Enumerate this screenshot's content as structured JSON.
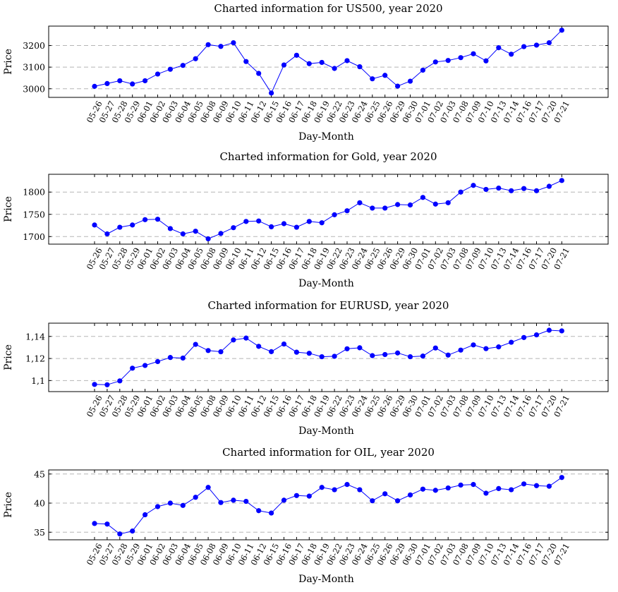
{
  "chart_data": [
    {
      "type": "line",
      "title": "Charted information for US500, year 2020",
      "xlabel": "Day-Month",
      "ylabel": "Price",
      "ylim": [
        2960,
        3290
      ],
      "yticks": [
        3000,
        3100,
        3200
      ],
      "ytick_labels": [
        "3000",
        "3100",
        "3200"
      ],
      "grid": "horizontal dashed",
      "line_color": "#0000ff",
      "categories": [
        "05-26",
        "05-27",
        "05-28",
        "05-29",
        "06-01",
        "06-02",
        "06-03",
        "06-04",
        "06-05",
        "06-08",
        "06-09",
        "06-10",
        "06-11",
        "06-12",
        "06-15",
        "06-16",
        "06-17",
        "06-18",
        "06-19",
        "06-22",
        "06-23",
        "06-24",
        "06-25",
        "06-26",
        "06-29",
        "06-30",
        "07-01",
        "07-02",
        "07-03",
        "07-08",
        "07-09",
        "07-10",
        "07-13",
        "07-14",
        "07-16",
        "07-17",
        "07-20",
        "07-21"
      ],
      "values": [
        3011,
        3024,
        3037,
        3022,
        3037,
        3068,
        3090,
        3108,
        3139,
        3204,
        3196,
        3213,
        3126,
        3071,
        2980,
        3110,
        3155,
        3116,
        3122,
        3094,
        3130,
        3102,
        3046,
        3062,
        3012,
        3035,
        3086,
        3124,
        3131,
        3144,
        3162,
        3129,
        3190,
        3160,
        3195,
        3202,
        3213,
        3271
      ]
    },
    {
      "type": "line",
      "title": "Charted information for Gold, year 2020",
      "xlabel": "Day-Month",
      "ylabel": "Price",
      "ylim": [
        1683,
        1840
      ],
      "yticks": [
        1700,
        1750,
        1800
      ],
      "ytick_labels": [
        "1700",
        "1750",
        "1800"
      ],
      "grid": "horizontal dashed",
      "line_color": "#0000ff",
      "categories": [
        "05-26",
        "05-27",
        "05-28",
        "05-29",
        "06-01",
        "06-02",
        "06-03",
        "06-04",
        "06-05",
        "06-08",
        "06-09",
        "06-10",
        "06-11",
        "06-12",
        "06-15",
        "06-16",
        "06-17",
        "06-18",
        "06-19",
        "06-22",
        "06-23",
        "06-24",
        "06-25",
        "06-26",
        "06-29",
        "06-30",
        "07-01",
        "07-02",
        "07-03",
        "07-08",
        "07-09",
        "07-10",
        "07-13",
        "07-14",
        "07-16",
        "07-17",
        "07-20",
        "07-21"
      ],
      "values": [
        1726,
        1706,
        1721,
        1726,
        1738,
        1739,
        1718,
        1706,
        1712,
        1695,
        1707,
        1720,
        1734,
        1735,
        1722,
        1729,
        1721,
        1734,
        1731,
        1749,
        1758,
        1776,
        1764,
        1764,
        1772,
        1771,
        1788,
        1773,
        1776,
        1800,
        1815,
        1806,
        1809,
        1803,
        1808,
        1803,
        1813,
        1826
      ]
    },
    {
      "type": "line",
      "title": "Charted information for EURUSD, year 2020",
      "xlabel": "Day-Month",
      "ylabel": "Price",
      "ylim": [
        1.09,
        1.152
      ],
      "yticks": [
        1.1,
        1.12,
        1.14
      ],
      "ytick_labels": [
        "1,1",
        "1,12",
        "1,14"
      ],
      "grid": "horizontal dashed",
      "line_color": "#0000ff",
      "categories": [
        "05-26",
        "05-27",
        "05-28",
        "05-29",
        "06-01",
        "06-02",
        "06-03",
        "06-04",
        "06-05",
        "06-08",
        "06-09",
        "06-10",
        "06-11",
        "06-12",
        "06-15",
        "06-16",
        "06-17",
        "06-18",
        "06-19",
        "06-22",
        "06-23",
        "06-24",
        "06-25",
        "06-26",
        "06-29",
        "06-30",
        "07-01",
        "07-02",
        "07-03",
        "07-08",
        "07-09",
        "07-10",
        "07-13",
        "07-14",
        "07-16",
        "07-17",
        "07-20",
        "07-21"
      ],
      "values": [
        1.0965,
        1.0962,
        1.0997,
        1.1112,
        1.1137,
        1.1172,
        1.1209,
        1.1204,
        1.1328,
        1.1272,
        1.1261,
        1.1368,
        1.1385,
        1.131,
        1.1262,
        1.1331,
        1.1257,
        1.1247,
        1.1216,
        1.122,
        1.1288,
        1.1297,
        1.1226,
        1.1236,
        1.125,
        1.1216,
        1.1222,
        1.1295,
        1.1231,
        1.1276,
        1.1323,
        1.1289,
        1.1305,
        1.1347,
        1.139,
        1.1414,
        1.1456,
        1.145
      ]
    },
    {
      "type": "line",
      "title": "Charted information for OIL, year 2020",
      "xlabel": "Day-Month",
      "ylabel": "Price",
      "ylim": [
        33.7,
        45.7
      ],
      "yticks": [
        35,
        40,
        45
      ],
      "ytick_labels": [
        "35",
        "40",
        "45"
      ],
      "grid": "horizontal dashed",
      "line_color": "#0000ff",
      "categories": [
        "05-26",
        "05-27",
        "05-28",
        "05-29",
        "06-01",
        "06-02",
        "06-03",
        "06-04",
        "06-05",
        "06-08",
        "06-09",
        "06-10",
        "06-11",
        "06-12",
        "06-15",
        "06-16",
        "06-17",
        "06-18",
        "06-19",
        "06-22",
        "06-23",
        "06-24",
        "06-25",
        "06-26",
        "06-29",
        "06-30",
        "07-01",
        "07-02",
        "07-03",
        "07-08",
        "07-09",
        "07-10",
        "07-13",
        "07-14",
        "07-16",
        "07-17",
        "07-20",
        "07-21"
      ],
      "values": [
        36.5,
        36.4,
        34.7,
        35.2,
        38.0,
        39.4,
        40.0,
        39.6,
        41.0,
        42.7,
        40.1,
        40.5,
        40.3,
        38.7,
        38.3,
        40.5,
        41.3,
        41.2,
        42.7,
        42.3,
        43.2,
        42.3,
        40.4,
        41.6,
        40.4,
        41.4,
        42.4,
        42.2,
        42.6,
        43.1,
        43.2,
        41.7,
        42.5,
        42.3,
        43.3,
        43.0,
        42.9,
        44.4
      ]
    }
  ]
}
